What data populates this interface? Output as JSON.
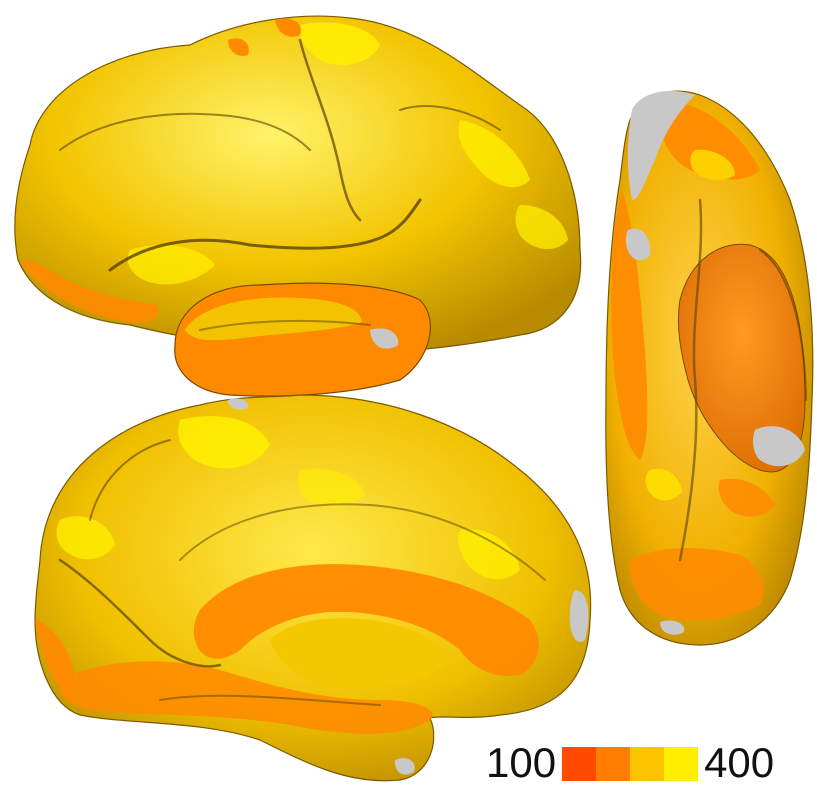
{
  "colors": {
    "background": "#ffffff",
    "cortex_base": "#f2c400",
    "cortex_dark": "#8a6a00",
    "region_high": "#ffee00",
    "region_mid": "#ffc400",
    "region_low": "#ff7d00",
    "region_min": "#ff4a00",
    "no_data_gray": "#c8c8c8"
  },
  "panels": [
    {
      "name": "lateral-view"
    },
    {
      "name": "medial-view"
    },
    {
      "name": "ventral-view"
    }
  ],
  "legend": {
    "min_label": "100",
    "max_label": "400",
    "swatches": [
      "#ff4a00",
      "#ff7d00",
      "#ffc400",
      "#ffee00"
    ]
  }
}
